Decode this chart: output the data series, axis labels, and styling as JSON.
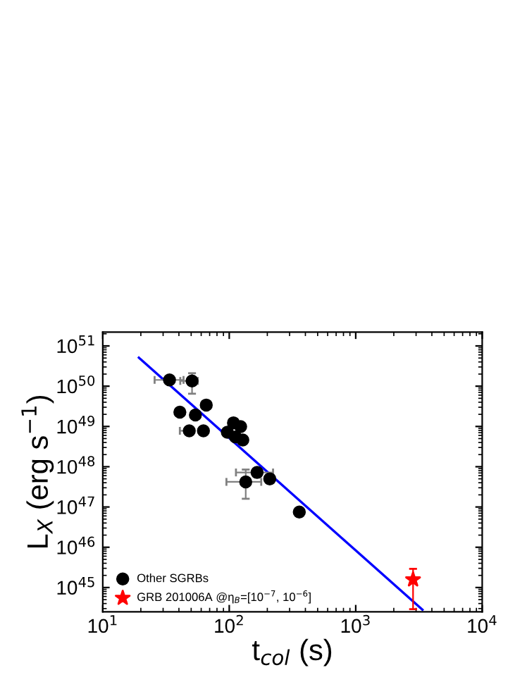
{
  "chart_data": {
    "type": "scatter",
    "xlabel": "t$_{col}$ (s)",
    "ylabel": "L$_{X}$ (erg s$^{−1}$)",
    "log": "xy",
    "grid": false,
    "legend": "bottom left",
    "xlim": [
      10,
      10000
    ],
    "ylim": [
      2.5e+44,
      2.2e+51
    ],
    "xticks": [
      {
        "value": 10,
        "label": "10$^{1}$"
      },
      {
        "value": 100,
        "label": "10$^{2}$"
      },
      {
        "value": 1000,
        "label": "10$^{3}$"
      },
      {
        "value": 10000,
        "label": "10$^{4}$"
      }
    ],
    "yticks": [
      {
        "value": 1e+45,
        "label": "10$^{45}$"
      },
      {
        "value": 1e+46,
        "label": "10$^{46}$"
      },
      {
        "value": 1e+47,
        "label": "10$^{47}$"
      },
      {
        "value": 1e+48,
        "label": "10$^{48}$"
      },
      {
        "value": 1e+49,
        "label": "10$^{49}$"
      },
      {
        "value": 1e+50,
        "label": "10$^{50}$"
      },
      {
        "value": 1e+51,
        "label": "10$^{51}$"
      }
    ],
    "series": [
      {
        "name": "Other SGRBs",
        "marker": "circle",
        "color": "#000000",
        "x": [
          33.7,
          50.8,
          40.7,
          54,
          65.8,
          48.3,
          62.5,
          96.6,
          108,
          123,
          112,
          128,
          166,
          135,
          209,
          358
        ],
        "values": [
          1.43e+50,
          1.35e+50,
          2.26e+49,
          1.93e+49,
          3.4e+49,
          7.8e+48,
          7.8e+48,
          7.2e+48,
          1.23e+49,
          9.9e+48,
          5.5e+48,
          4.6e+48,
          7.2e+47,
          4.2e+47,
          5e+47,
          7.5e+46
        ],
        "xerrors": [
          [
            25.7,
            43.5
          ],
          [
            41,
            56.4
          ],
          null,
          null,
          null,
          [
            40.7,
            48.3
          ],
          null,
          null,
          null,
          null,
          null,
          null,
          [
            113,
            222
          ],
          [
            95,
            179
          ],
          null,
          null
        ],
        "errors": [
          null,
          [
            6.5e+49,
            2.1e+50
          ],
          null,
          null,
          null,
          null,
          null,
          null,
          null,
          null,
          null,
          null,
          null,
          [
            1.6e+47,
            8.5e+47
          ],
          null,
          null
        ]
      },
      {
        "name": "GRB 201006A @η$_{B}$=[10$^{−7}$, 10$^{−6}$]",
        "marker": "star",
        "color": "#ff0000",
        "x": [
          2840
        ],
        "values": [
          1.57e+45
        ],
        "errors": [
          [
            2.9e+44,
            2.9e+45
          ]
        ]
      },
      {
        "type": "line",
        "color": "#0000ff",
        "x": [
          19.3,
          3370
        ],
        "values": [
          5.1e+50,
          2.8e+44
        ],
        "line_style": "solid",
        "marker": "none"
      }
    ]
  }
}
